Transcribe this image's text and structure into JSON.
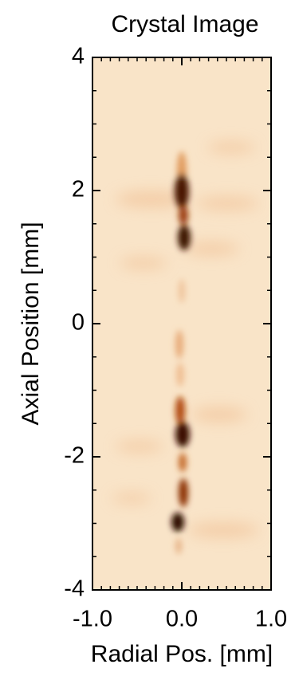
{
  "chart_data": {
    "type": "image",
    "title": "Crystal Image",
    "xlabel": "Radial Pos. [mm]",
    "ylabel": "Axial Position [mm]",
    "xlim": [
      -1,
      1
    ],
    "ylim": [
      -4,
      4
    ],
    "xticks": [
      {
        "value": -1,
        "label": "-1.0"
      },
      {
        "value": 0,
        "label": "0.0"
      },
      {
        "value": 1,
        "label": "1.0"
      }
    ],
    "yticks": [
      -4,
      -2,
      0,
      2,
      4
    ],
    "xminorticks": [
      -0.9,
      -0.8,
      -0.7,
      -0.6,
      -0.5,
      -0.4,
      -0.3,
      -0.2,
      -0.1,
      0.1,
      0.2,
      0.3,
      0.4,
      0.5,
      0.6,
      0.7,
      0.8,
      0.9
    ],
    "yminorticks": [
      -3.5,
      -3,
      -2.5,
      -1.5,
      -1,
      -0.5,
      0.5,
      1,
      1.5,
      2.5,
      3,
      3.5
    ],
    "background_color": "#f9e4c8"
  }
}
